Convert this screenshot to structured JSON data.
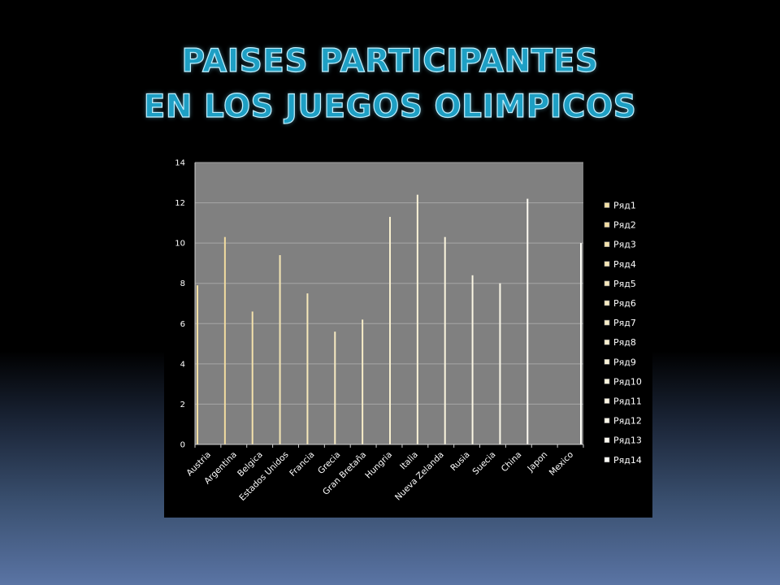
{
  "slide": {
    "title_line1": "PAISES PARTICIPANTES",
    "title_line2": "EN LOS JUEGOS OLIMPICOS"
  },
  "chart_data": {
    "type": "bar",
    "title": "",
    "xlabel": "",
    "ylabel": "",
    "ylim": [
      0,
      14
    ],
    "yticks": [
      "0",
      "2",
      "4",
      "6",
      "8",
      "10",
      "12",
      "14"
    ],
    "grid": true,
    "legend_position": "right",
    "categories": [
      "Austria",
      "Argentina",
      "Belgica",
      "Estados Unidos",
      "Francia",
      "Grecia",
      "Gran Bretaña",
      "Hungria",
      "Italia",
      "Nueva Zelanda",
      "Rusia",
      "Suecia",
      "China",
      "Japon",
      "Mexico"
    ],
    "series": [
      {
        "name": "Ряд1",
        "values": [
          7.9,
          0,
          0,
          0,
          0,
          0,
          0,
          0,
          0,
          0,
          0,
          0,
          0,
          0,
          0
        ]
      },
      {
        "name": "Ряд2",
        "values": [
          0,
          10.3,
          0,
          0,
          0,
          0,
          0,
          0,
          0,
          0,
          0,
          0,
          0,
          0,
          0
        ]
      },
      {
        "name": "Ряд3",
        "values": [
          0,
          0,
          6.6,
          0,
          0,
          0,
          0,
          0,
          0,
          0,
          0,
          0,
          0,
          0,
          0
        ]
      },
      {
        "name": "Ряд4",
        "values": [
          0,
          0,
          0,
          9.4,
          0,
          0,
          0,
          0,
          0,
          0,
          0,
          0,
          0,
          0,
          0
        ]
      },
      {
        "name": "Ряд5",
        "values": [
          0,
          0,
          0,
          0,
          7.5,
          0,
          0,
          0,
          0,
          0,
          0,
          0,
          0,
          0,
          0
        ]
      },
      {
        "name": "Ряд6",
        "values": [
          0,
          0,
          0,
          0,
          0,
          5.6,
          0,
          0,
          0,
          0,
          0,
          0,
          0,
          0,
          0
        ]
      },
      {
        "name": "Ряд7",
        "values": [
          0,
          0,
          0,
          0,
          0,
          0,
          6.2,
          0,
          0,
          0,
          0,
          0,
          0,
          0,
          0
        ]
      },
      {
        "name": "Ряд8",
        "values": [
          0,
          0,
          0,
          0,
          0,
          0,
          0,
          11.3,
          0,
          0,
          0,
          0,
          0,
          0,
          0
        ]
      },
      {
        "name": "Ряд9",
        "values": [
          0,
          0,
          0,
          0,
          0,
          0,
          0,
          0,
          12.4,
          0,
          0,
          0,
          0,
          0,
          0
        ]
      },
      {
        "name": "Ряд10",
        "values": [
          0,
          0,
          0,
          0,
          0,
          0,
          0,
          0,
          0,
          10.3,
          0,
          0,
          0,
          0,
          0
        ]
      },
      {
        "name": "Ряд11",
        "values": [
          0,
          0,
          0,
          0,
          0,
          0,
          0,
          0,
          0,
          0,
          8.4,
          0,
          0,
          0,
          0
        ]
      },
      {
        "name": "Ряд12",
        "values": [
          0,
          0,
          0,
          0,
          0,
          0,
          0,
          0,
          0,
          0,
          0,
          8.0,
          0,
          0,
          0
        ]
      },
      {
        "name": "Ряд13",
        "values": [
          0,
          0,
          0,
          0,
          0,
          0,
          0,
          0,
          0,
          0,
          0,
          0,
          12.2,
          0,
          0
        ]
      },
      {
        "name": "Ряд14",
        "values": [
          0,
          0,
          0,
          0,
          0,
          0,
          0,
          0,
          0,
          0,
          0,
          0,
          0,
          0,
          10.0
        ]
      }
    ],
    "bar_colors": [
      "#f3e0a4",
      "#f2dca0",
      "#f4e2ac",
      "#f5e6b4",
      "#f6e8ba",
      "#f7ebc2",
      "#f8eec8",
      "#f9f0d0",
      "#faf3d8",
      "#fbf5de",
      "#fcf7e4",
      "#fdf9ea",
      "#fefbf2",
      "#fffef8"
    ],
    "colors": {
      "plot_bg": "#808080",
      "gridline": "#a6a6a6",
      "chart_bg": "#000000",
      "text": "#ffffff"
    }
  }
}
